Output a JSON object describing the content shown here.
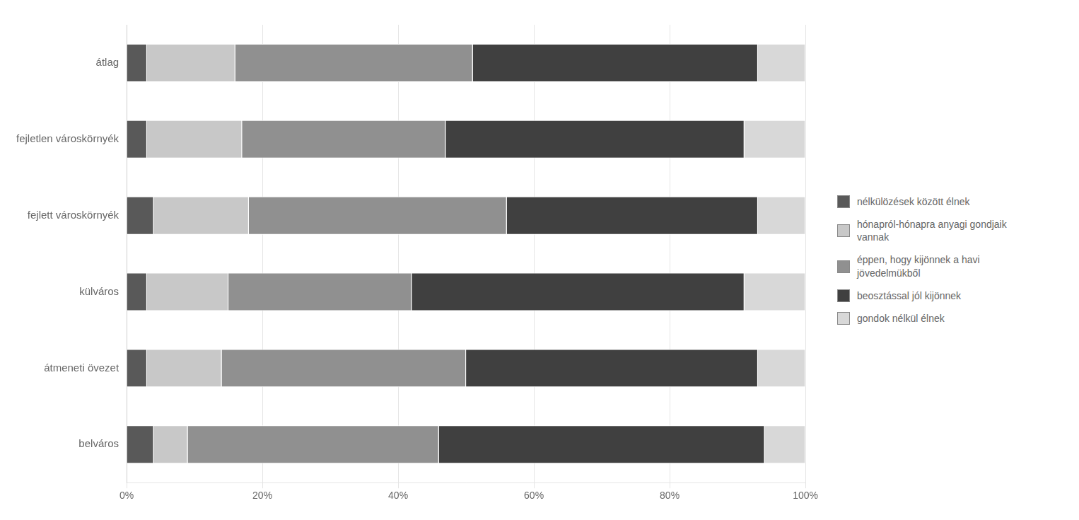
{
  "chart_data": {
    "type": "bar",
    "orientation": "horizontal",
    "stacked": true,
    "categories": [
      "átlag",
      "fejletlen városkörnyék",
      "fejlett városkörnyék",
      "külváros",
      "átmeneti övezet",
      "belváros"
    ],
    "series": [
      {
        "name": "nélkülözések között élnek",
        "color": "#595959",
        "values": [
          3,
          3,
          4,
          3,
          3,
          4
        ]
      },
      {
        "name": "hónapról-hónapra anyagi gondjaik\nvannak",
        "color": "#c8c8c8",
        "values": [
          13,
          14,
          14,
          12,
          11,
          5
        ]
      },
      {
        "name": "éppen, hogy kijönnek a havi\njövedelmükből",
        "color": "#909090",
        "values": [
          35,
          30,
          38,
          27,
          36,
          37
        ]
      },
      {
        "name": "beosztással jól kijönnek",
        "color": "#404040",
        "values": [
          42,
          44,
          37,
          49,
          43,
          48
        ]
      },
      {
        "name": "gondok nélkül élnek",
        "color": "#d8d8d8",
        "values": [
          7,
          9,
          7,
          9,
          7,
          6
        ]
      }
    ],
    "xlim": [
      0,
      100
    ],
    "xticks": [
      {
        "value": 0,
        "label": "0%"
      },
      {
        "value": 20,
        "label": "20%"
      },
      {
        "value": 40,
        "label": "40%"
      },
      {
        "value": 60,
        "label": "60%"
      },
      {
        "value": 80,
        "label": "80%"
      },
      {
        "value": 100,
        "label": "100%"
      }
    ],
    "grid": true,
    "legend": "right"
  }
}
